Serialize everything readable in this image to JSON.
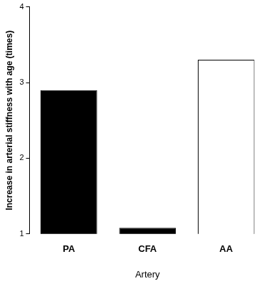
{
  "chart_data": {
    "type": "bar",
    "categories": [
      "PA",
      "CFA",
      "AA"
    ],
    "values": [
      2.9,
      1.08,
      3.3
    ],
    "colors": [
      "#000000",
      "#000000",
      "#ffffff"
    ],
    "x_label": "Artery",
    "y_label": "Increase in arterial stiffness with age (times)",
    "ylim": [
      1,
      4
    ],
    "yticks": [
      1,
      2,
      3,
      4
    ],
    "grid": false
  }
}
